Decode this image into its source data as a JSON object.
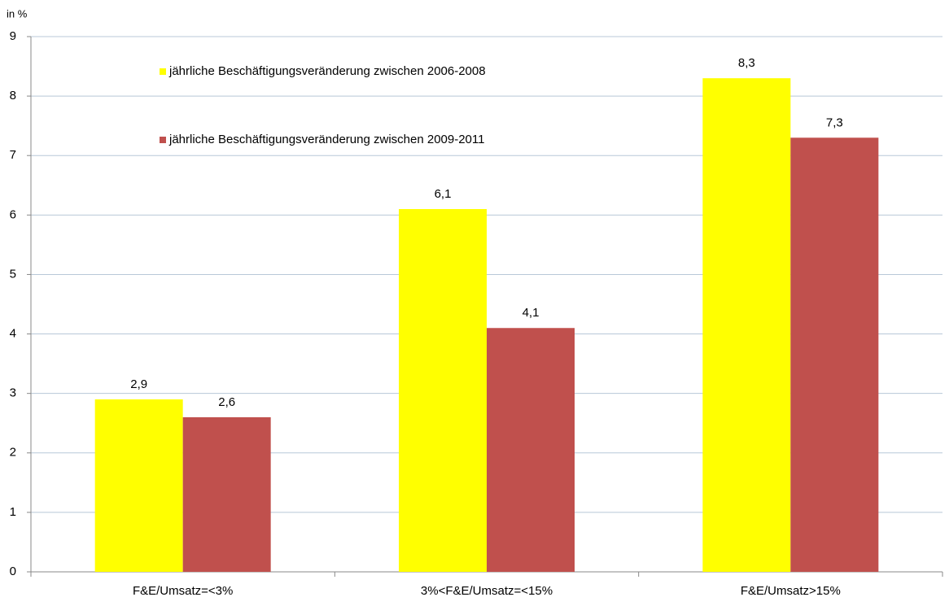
{
  "chart_data": {
    "type": "bar",
    "y_label": "in %",
    "categories": [
      "F&E/Umsatz=<3%",
      "3%<F&E/Umsatz=<15%",
      "F&E/Umsatz>15%"
    ],
    "series": [
      {
        "name": "jährliche Beschäftigungsveränderung zwischen 2006-2008",
        "color": "#ffff00",
        "values": [
          2.9,
          6.1,
          8.3
        ],
        "value_labels": [
          "2,9",
          "6,1",
          "8,3"
        ]
      },
      {
        "name": "jährliche Beschäftigungsveränderung zwischen 2009-2011",
        "color": "#c0504d",
        "values": [
          2.6,
          4.1,
          7.3
        ],
        "value_labels": [
          "2,6",
          "4,1",
          "7,3"
        ]
      }
    ],
    "ylim": [
      0,
      9
    ],
    "yticks": [
      0,
      1,
      2,
      3,
      4,
      5,
      6,
      7,
      8,
      9
    ],
    "grid": true
  }
}
